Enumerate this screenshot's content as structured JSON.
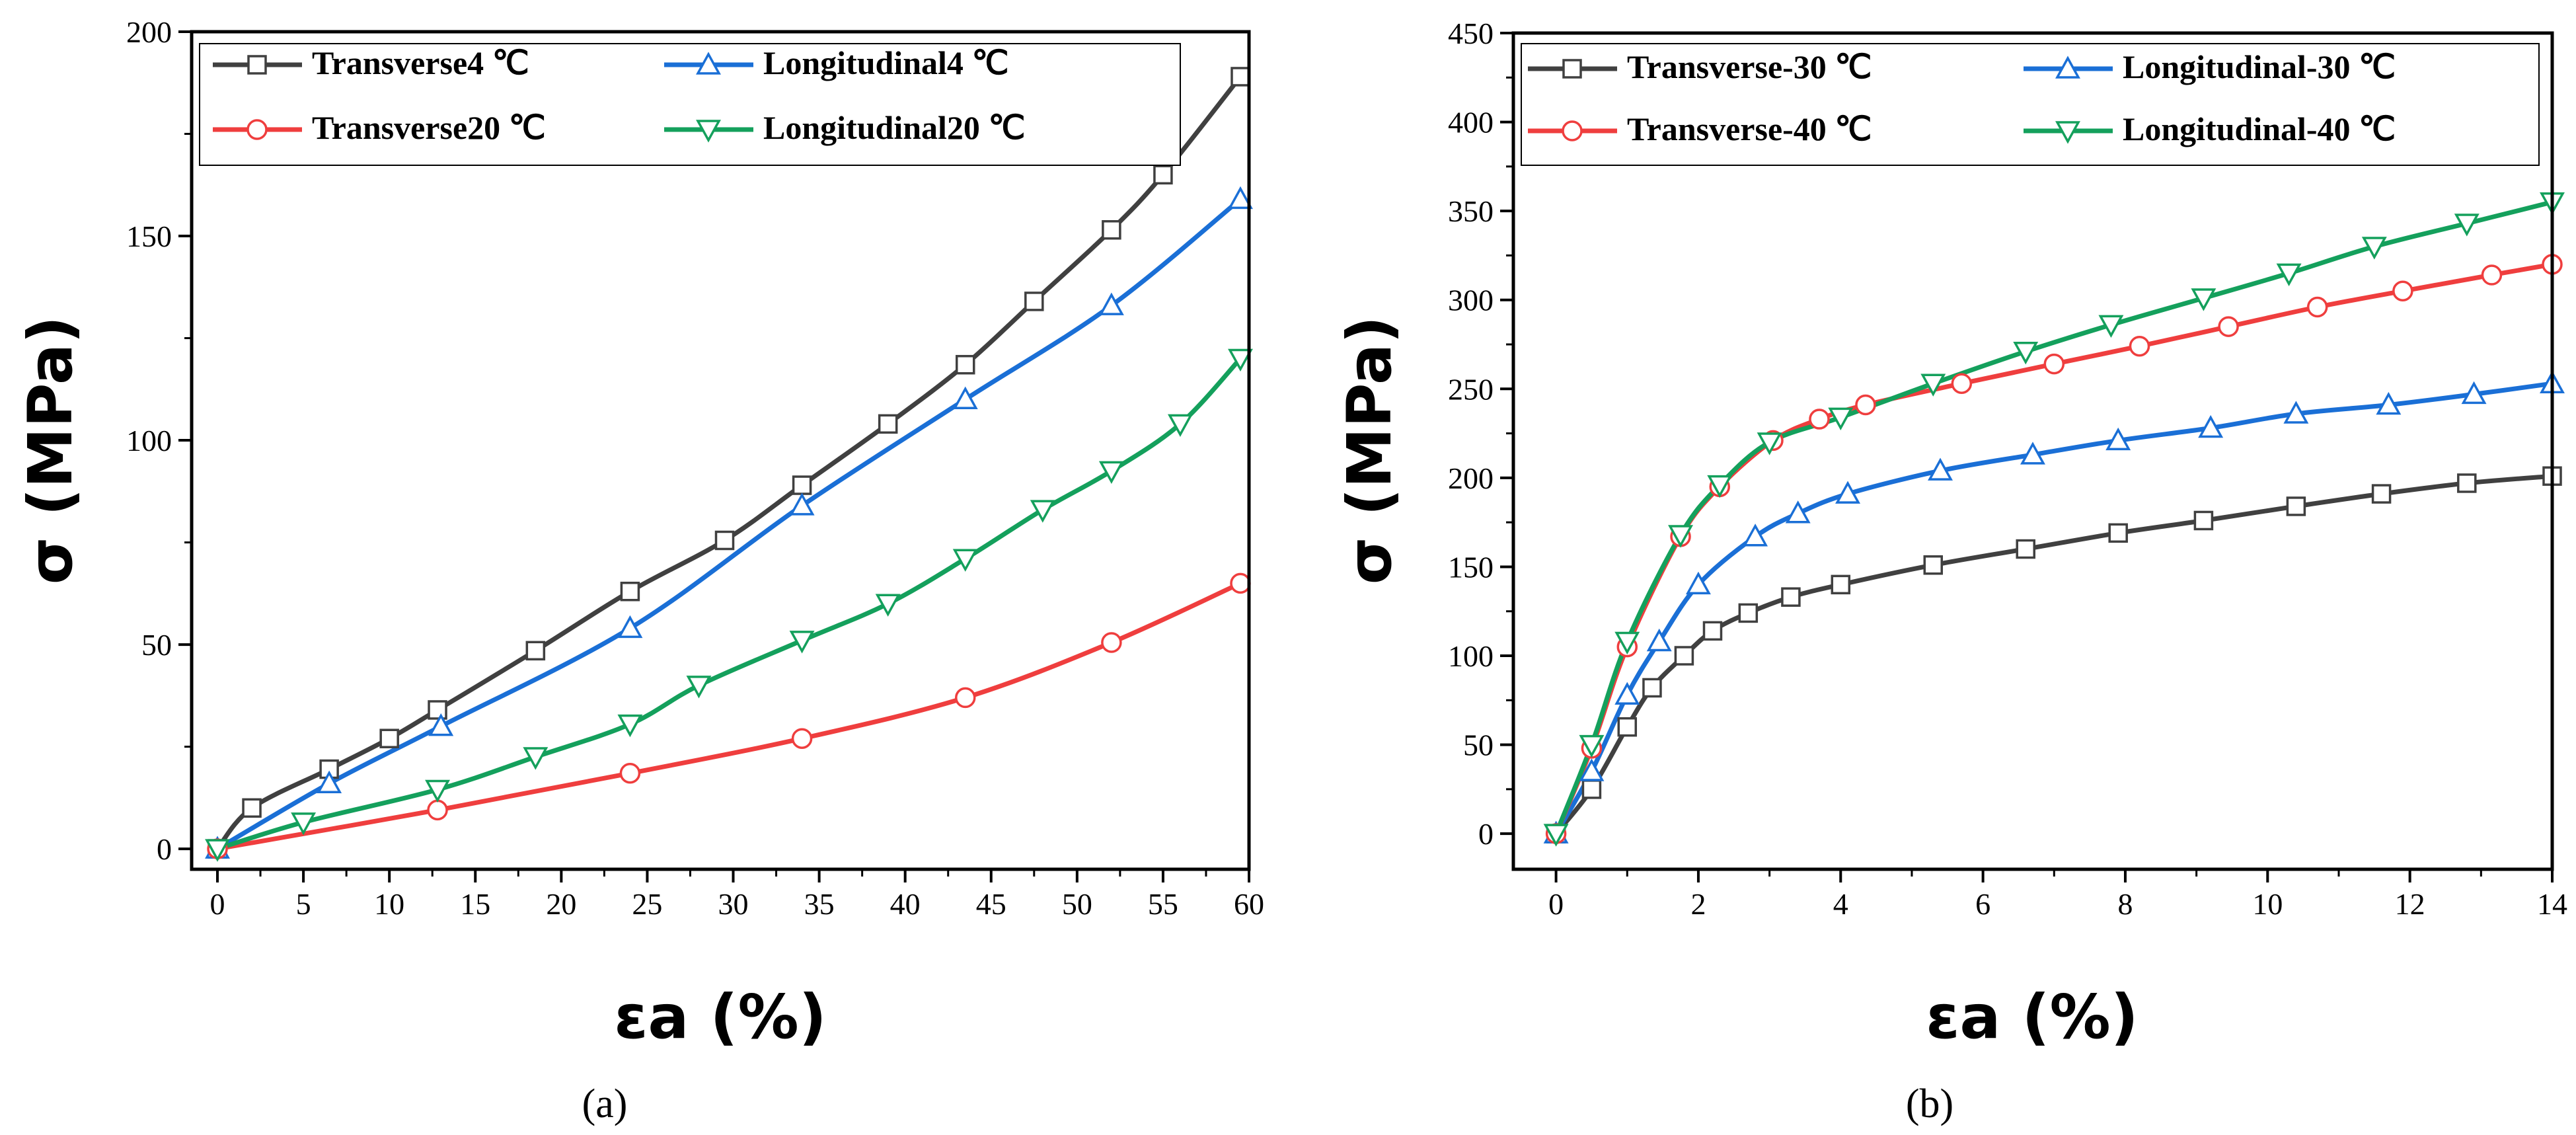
{
  "chart_data": [
    {
      "type": "line",
      "panel": "(a)",
      "xlabel": "εa (%)",
      "ylabel": "σ (MPa)",
      "xlim": [
        0,
        60
      ],
      "ylim": [
        0,
        200
      ],
      "xticks": [
        0,
        5,
        10,
        15,
        20,
        25,
        30,
        35,
        40,
        45,
        50,
        55,
        60
      ],
      "yticks": [
        0,
        50,
        100,
        150,
        200
      ],
      "grid": false,
      "legend_position": "top-left",
      "series": [
        {
          "name": "Transverse4 ℃",
          "color": "#404040",
          "marker": "square",
          "x": [
            0,
            2,
            6.5,
            10,
            12.8,
            18.5,
            24,
            29.5,
            34,
            39,
            43.5,
            47.5,
            52,
            55,
            59.5
          ],
          "y": [
            0,
            10,
            19.5,
            27,
            34,
            48.5,
            63,
            75.5,
            89,
            104,
            118.5,
            134,
            151.5,
            165,
            189
          ]
        },
        {
          "name": "Longitudinal4 ℃",
          "color": "#1a6fd6",
          "marker": "triangle-up",
          "x": [
            0,
            6.5,
            13,
            24,
            34,
            43.5,
            52,
            59.5
          ],
          "y": [
            0,
            16,
            30,
            54,
            84,
            110,
            133,
            159
          ]
        },
        {
          "name": "Transverse20 ℃",
          "color": "#ef3e3e",
          "marker": "circle",
          "x": [
            0,
            12.8,
            24,
            34,
            43.5,
            52,
            59.5
          ],
          "y": [
            0,
            9.5,
            18.5,
            27,
            37,
            50.5,
            65
          ]
        },
        {
          "name": "Longitudinal20 ℃",
          "color": "#14a05c",
          "marker": "triangle-down",
          "x": [
            0,
            5,
            12.8,
            18.5,
            24,
            28,
            34,
            39,
            43.5,
            48,
            52,
            56,
            59.5
          ],
          "y": [
            0,
            6.5,
            14.5,
            22.5,
            30.5,
            40,
            51,
            60,
            71,
            83,
            92.5,
            104,
            120
          ]
        }
      ],
      "caption": "(a)"
    },
    {
      "type": "line",
      "panel": "(b)",
      "xlabel": "εa (%)",
      "ylabel": "σ (MPa)",
      "xlim": [
        0,
        14
      ],
      "ylim": [
        0,
        450
      ],
      "xticks": [
        0,
        2,
        4,
        6,
        8,
        10,
        12,
        14
      ],
      "yticks": [
        0,
        50,
        100,
        150,
        200,
        250,
        300,
        350,
        400,
        450
      ],
      "grid": false,
      "legend_position": "top",
      "series": [
        {
          "name": "Transverse-30 ℃",
          "color": "#404040",
          "marker": "square",
          "x": [
            0,
            0.5,
            1,
            1.35,
            1.8,
            2.2,
            2.7,
            3.3,
            4,
            5.3,
            6.6,
            7.9,
            9.1,
            10.4,
            11.6,
            12.8,
            14
          ],
          "y": [
            0,
            25,
            60,
            82,
            100,
            114,
            124,
            133,
            140,
            151,
            160,
            169,
            176,
            184,
            191,
            197,
            201
          ]
        },
        {
          "name": "Longitudinal-30 ℃",
          "color": "#1a6fd6",
          "marker": "triangle-up",
          "x": [
            0,
            0.5,
            1,
            1.45,
            2,
            2.8,
            3.4,
            4.1,
            5.4,
            6.7,
            7.9,
            9.2,
            10.4,
            11.7,
            12.9,
            14
          ],
          "y": [
            0,
            35,
            78,
            108,
            140,
            167,
            180,
            191,
            204,
            213,
            221,
            228,
            236,
            241,
            247,
            253
          ]
        },
        {
          "name": "Transverse-40 ℃",
          "color": "#ef3e3e",
          "marker": "circle",
          "x": [
            0,
            0.5,
            1,
            1.75,
            2.3,
            3.05,
            3.7,
            4.35,
            5.7,
            7,
            8.2,
            9.45,
            10.7,
            11.9,
            13.15,
            14
          ],
          "y": [
            0,
            48,
            105,
            167,
            195,
            221,
            233,
            241,
            253,
            264,
            274,
            285,
            296,
            305,
            314,
            320
          ]
        },
        {
          "name": "Longitudinal-40 ℃",
          "color": "#14a05c",
          "marker": "triangle-down",
          "x": [
            0,
            0.5,
            1,
            1.75,
            2.3,
            3,
            4,
            5.3,
            6.6,
            7.8,
            9.1,
            10.3,
            11.5,
            12.8,
            14
          ],
          "y": [
            0,
            50,
            108,
            168,
            196,
            220,
            234,
            253,
            271,
            286,
            301,
            315,
            330,
            343,
            355
          ]
        }
      ],
      "caption": "(b)"
    }
  ]
}
